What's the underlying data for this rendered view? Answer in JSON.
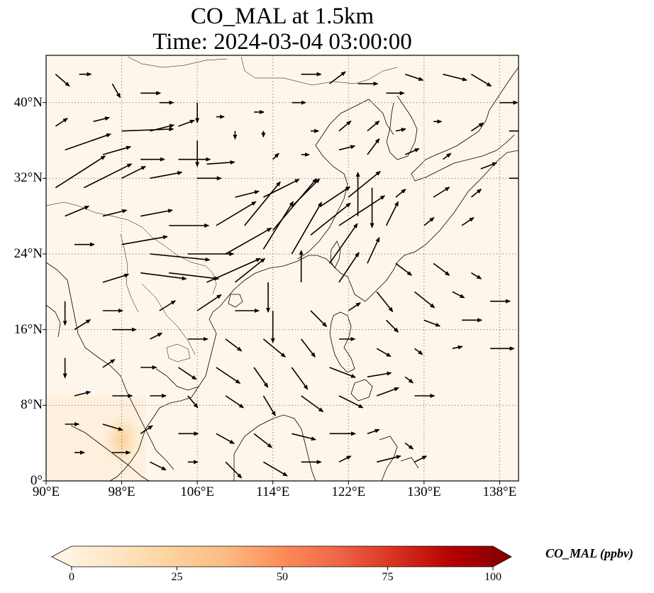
{
  "title": {
    "line1": "CO_MAL at 1.5km",
    "line2": "Time: 2024-03-04 03:00:00"
  },
  "map": {
    "extent": {
      "lon": [
        90,
        140
      ],
      "lat": [
        0,
        45
      ]
    },
    "lon_ticks": [
      {
        "value": 90,
        "label": "90°E"
      },
      {
        "value": 98,
        "label": "98°E"
      },
      {
        "value": 106,
        "label": "106°E"
      },
      {
        "value": 114,
        "label": "114°E"
      },
      {
        "value": 122,
        "label": "122°E"
      },
      {
        "value": 130,
        "label": "130°E"
      },
      {
        "value": 138,
        "label": "138°E"
      }
    ],
    "lat_ticks": [
      {
        "value": 0,
        "label": "0°"
      },
      {
        "value": 8,
        "label": "8°N"
      },
      {
        "value": 16,
        "label": "16°N"
      },
      {
        "value": 24,
        "label": "24°N"
      },
      {
        "value": 32,
        "label": "32°N"
      },
      {
        "value": 40,
        "label": "40°N"
      }
    ],
    "gridlines": "dotted",
    "background_color": "#fff6eb",
    "coastline_color": "#000000",
    "hotspot": {
      "lon": 98,
      "lat": 4.3,
      "value_ppbv": 18
    }
  },
  "colorbar": {
    "label": "CO_MAL (ppbv)",
    "range": [
      0,
      100
    ],
    "ticks": [
      "0",
      "25",
      "50",
      "75",
      "100"
    ],
    "colormap": "OrRd",
    "colors": [
      "#fff7ec",
      "#fee8c8",
      "#fdd49e",
      "#fdbb84",
      "#fc8d59",
      "#ef6548",
      "#d7301f",
      "#b30000",
      "#7f0000"
    ],
    "extend": "both"
  },
  "wind_vectors": [
    [
      91,
      43,
      0.7,
      -0.6
    ],
    [
      93.5,
      43,
      0.6,
      0
    ],
    [
      97,
      42,
      0.4,
      -0.7
    ],
    [
      100,
      41,
      1,
      0
    ],
    [
      102,
      40,
      0.7,
      0
    ],
    [
      106,
      40,
      0,
      -1
    ],
    [
      108,
      38.5,
      0.4,
      0
    ],
    [
      112,
      39,
      0.5,
      0
    ],
    [
      116,
      40,
      0.7,
      0
    ],
    [
      117,
      43,
      1,
      0
    ],
    [
      120,
      42,
      0.8,
      0.6
    ],
    [
      123,
      42,
      1,
      0
    ],
    [
      126,
      41,
      0.9,
      0
    ],
    [
      128,
      43,
      0.9,
      -0.3
    ],
    [
      132,
      43,
      1.2,
      -0.3
    ],
    [
      135,
      43,
      1,
      -0.6
    ],
    [
      138,
      40,
      0.9,
      0
    ],
    [
      91,
      37.5,
      0.6,
      0.4
    ],
    [
      95,
      38,
      0.8,
      0.2
    ],
    [
      98,
      37,
      2.6,
      0.1
    ],
    [
      101,
      37,
      1.2,
      0.3
    ],
    [
      104,
      37.5,
      0.8,
      0.3
    ],
    [
      106,
      36,
      0,
      -1.3
    ],
    [
      110,
      37,
      0,
      -0.4
    ],
    [
      113,
      37,
      0,
      -0.3
    ],
    [
      118,
      37,
      0.4,
      0
    ],
    [
      121,
      37,
      0.6,
      0.5
    ],
    [
      124,
      37,
      0.6,
      0.5
    ],
    [
      127,
      37,
      0.5,
      0.1
    ],
    [
      131,
      38,
      0.4,
      0
    ],
    [
      135,
      37,
      0.6,
      0.4
    ],
    [
      139,
      37,
      1,
      0
    ],
    [
      92,
      35,
      2.3,
      0.8
    ],
    [
      96,
      34.5,
      1.4,
      0.4
    ],
    [
      100,
      34,
      1.2,
      0
    ],
    [
      104,
      34,
      1.6,
      0
    ],
    [
      107,
      33.5,
      1.4,
      0.1
    ],
    [
      114,
      34,
      0.3,
      0.3
    ],
    [
      117,
      34.5,
      0.4,
      0
    ],
    [
      121,
      35,
      0.8,
      0.2
    ],
    [
      124,
      34.5,
      0.6,
      0.8
    ],
    [
      128,
      34.5,
      0.7,
      0.3
    ],
    [
      132,
      34,
      0.4,
      0.3
    ],
    [
      136,
      33,
      0.8,
      0.3
    ],
    [
      139,
      32,
      0.8,
      0
    ],
    [
      91,
      31,
      2.5,
      1.6
    ],
    [
      94,
      31,
      2.4,
      1.2
    ],
    [
      98,
      32,
      1.2,
      0.6
    ],
    [
      101,
      32,
      1.6,
      0.3
    ],
    [
      106,
      32,
      1.2,
      0
    ],
    [
      110,
      30,
      1.2,
      0.3
    ],
    [
      113,
      30,
      1.8,
      0.9
    ],
    [
      116,
      29,
      1.4,
      1.4
    ],
    [
      119,
      29,
      1.5,
      1
    ],
    [
      122,
      30,
      1.6,
      1.3
    ],
    [
      124.5,
      31,
      0,
      -2
    ],
    [
      127,
      30,
      0.5,
      0.4
    ],
    [
      131,
      30,
      0.8,
      0.5
    ],
    [
      135,
      30,
      0.5,
      0.4
    ],
    [
      92,
      28,
      1.2,
      0.5
    ],
    [
      96,
      28,
      1.2,
      0.3
    ],
    [
      100,
      28,
      1.6,
      0.3
    ],
    [
      103,
      27,
      2,
      0
    ],
    [
      108,
      27,
      2,
      1.2
    ],
    [
      111,
      27,
      1.8,
      2.2
    ],
    [
      114,
      26.5,
      2.2,
      2.6
    ],
    [
      118,
      26,
      2,
      1.6
    ],
    [
      121,
      27,
      2.3,
      1.5
    ],
    [
      123,
      28,
      0,
      2.2
    ],
    [
      126,
      27,
      0.6,
      1.2
    ],
    [
      130,
      27,
      0.5,
      0.4
    ],
    [
      134,
      27,
      0.6,
      0.4
    ],
    [
      93,
      25,
      1,
      0
    ],
    [
      98,
      25,
      2.3,
      0.4
    ],
    [
      101,
      24,
      3,
      -0.3
    ],
    [
      105,
      24,
      2.3,
      0
    ],
    [
      109,
      24,
      2.3,
      1.3
    ],
    [
      113,
      24.5,
      1.5,
      2.4
    ],
    [
      116,
      24,
      1.5,
      2.6
    ],
    [
      120,
      23,
      1.4,
      2
    ],
    [
      124,
      23,
      0.6,
      1.3
    ],
    [
      127,
      23,
      0.8,
      -0.6
    ],
    [
      131,
      23,
      0.8,
      -0.6
    ],
    [
      135,
      22,
      0.5,
      -0.3
    ],
    [
      96,
      21,
      1.3,
      0.4
    ],
    [
      100,
      22,
      2.3,
      -0.3
    ],
    [
      103,
      22,
      2.5,
      -0.3
    ],
    [
      107,
      21,
      2.7,
      1.2
    ],
    [
      110,
      21,
      1.5,
      1.2
    ],
    [
      113.5,
      21,
      0,
      -1.5
    ],
    [
      117,
      21,
      0,
      1.6
    ],
    [
      121,
      21,
      1,
      1.5
    ],
    [
      125,
      20,
      0.8,
      -1
    ],
    [
      129,
      20,
      1,
      -0.8
    ],
    [
      133,
      20,
      0.6,
      -0.3
    ],
    [
      137,
      19,
      1,
      0
    ],
    [
      92,
      19,
      0,
      -1.2
    ],
    [
      96,
      18,
      1,
      0
    ],
    [
      102,
      18,
      0.8,
      0.5
    ],
    [
      106,
      18,
      1.2,
      0.8
    ],
    [
      110,
      18,
      1.2,
      0
    ],
    [
      114,
      18,
      0,
      -1.6
    ],
    [
      118,
      18,
      0.8,
      -0.8
    ],
    [
      122,
      18,
      0.6,
      0.4
    ],
    [
      126,
      17,
      0.6,
      -0.6
    ],
    [
      130,
      17,
      0.8,
      -0.3
    ],
    [
      134,
      17,
      1,
      0
    ],
    [
      93,
      16,
      0.8,
      0.5
    ],
    [
      97,
      16,
      1.2,
      0
    ],
    [
      101,
      15,
      0.6,
      0.3
    ],
    [
      105,
      15,
      1,
      0
    ],
    [
      109,
      15,
      0.8,
      -0.6
    ],
    [
      113,
      15,
      1.1,
      -0.9
    ],
    [
      117,
      15,
      0.7,
      -0.9
    ],
    [
      121,
      15,
      0.8,
      0
    ],
    [
      125,
      14,
      0.7,
      -0.4
    ],
    [
      129,
      14,
      0.4,
      -0.3
    ],
    [
      133,
      14,
      0.5,
      0.1
    ],
    [
      137,
      14,
      1.2,
      0
    ],
    [
      92,
      13,
      0,
      -1
    ],
    [
      96,
      12,
      0.6,
      0.4
    ],
    [
      100,
      12,
      0.8,
      0
    ],
    [
      104,
      12,
      0.9,
      -0.6
    ],
    [
      108,
      12,
      1.2,
      -0.8
    ],
    [
      112,
      12,
      0.7,
      -1
    ],
    [
      116,
      12,
      0.8,
      -1.1
    ],
    [
      120,
      12,
      1.3,
      -0.5
    ],
    [
      124,
      11,
      1.2,
      0.2
    ],
    [
      128,
      11,
      0.4,
      -0.3
    ],
    [
      93,
      9,
      0.8,
      0.2
    ],
    [
      97,
      9,
      1,
      0
    ],
    [
      101,
      9,
      0.8,
      0
    ],
    [
      105,
      9,
      0.5,
      -0.6
    ],
    [
      109,
      9,
      0.9,
      -0.6
    ],
    [
      113,
      9,
      0.6,
      -1
    ],
    [
      117,
      9,
      1.1,
      -0.8
    ],
    [
      121,
      9,
      1.2,
      -0.6
    ],
    [
      125,
      9,
      1.1,
      0.4
    ],
    [
      129,
      9,
      1,
      0
    ],
    [
      92,
      6,
      0.7,
      0
    ],
    [
      96,
      6,
      1,
      -0.3
    ],
    [
      100,
      5,
      0.6,
      0.4
    ],
    [
      104,
      5,
      1,
      0
    ],
    [
      108,
      5,
      0.9,
      -0.5
    ],
    [
      112,
      5,
      0.9,
      -0.7
    ],
    [
      116,
      5,
      1.2,
      -0.3
    ],
    [
      120,
      5,
      1.3,
      0
    ],
    [
      124,
      5,
      0.6,
      0.2
    ],
    [
      128,
      4,
      0.4,
      -0.3
    ],
    [
      93,
      3,
      0.5,
      0
    ],
    [
      97,
      3,
      0.9,
      0
    ],
    [
      101,
      2,
      0.8,
      -0.4
    ],
    [
      105,
      2,
      0.5,
      0
    ],
    [
      109,
      2,
      0.8,
      -0.8
    ],
    [
      113,
      2,
      1.2,
      -0.7
    ],
    [
      117,
      2,
      1,
      0
    ],
    [
      121,
      2,
      0.6,
      0.3
    ],
    [
      125,
      2,
      1.2,
      0.3
    ],
    [
      129,
      2,
      0.6,
      0.3
    ]
  ]
}
